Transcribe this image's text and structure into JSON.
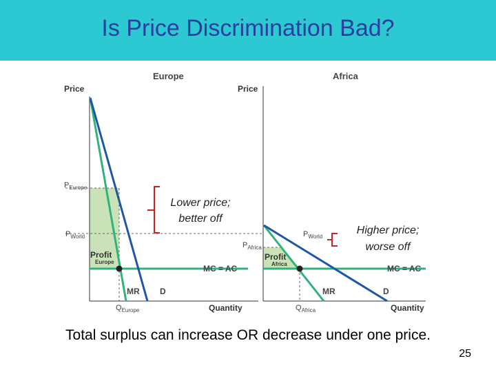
{
  "title": "Is Price Discrimination Bad?",
  "europe": {
    "panel_title": "Europe",
    "price_axis": "Price",
    "quantity_axis": "Quantity",
    "p_europe": "P",
    "p_europe_sub": "Europe",
    "p_world": "P",
    "p_world_sub": "World",
    "profit": "Profit",
    "profit_sub": "Europe",
    "mc_ac": "MC = AC",
    "mr": "MR",
    "d": "D",
    "q_europe": "Q",
    "q_europe_sub": "Europe"
  },
  "africa": {
    "panel_title": "Africa",
    "price_axis": "Price",
    "quantity_axis": "Quantity",
    "p_world": "P",
    "p_world_sub": "World",
    "p_africa": "P",
    "p_africa_sub": "Africa",
    "profit": "Profit",
    "profit_sub": "Africa",
    "mc_ac": "MC = AC",
    "mr": "MR",
    "d": "D",
    "q_africa": "Q",
    "q_africa_sub": "Africa"
  },
  "annotations": {
    "europe_line1": "Lower price;",
    "europe_line2": "better off",
    "africa_line1": "Higher price;",
    "africa_line2": "worse off"
  },
  "footer": "Total surplus can increase OR decrease under one price.",
  "page_number": "25",
  "colors": {
    "title_bar": "#2cc9d3",
    "title_text": "#2a3f9e",
    "demand": "#1f57a8",
    "mr": "#2fb37a",
    "profit_fill": "#c9e2b8",
    "bracket": "#cc2222"
  }
}
